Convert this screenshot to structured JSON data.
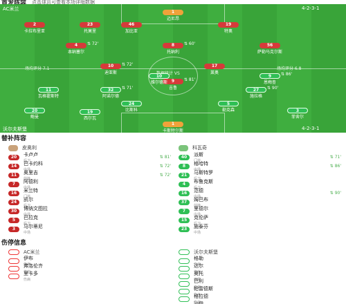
{
  "sections": {
    "lineup_title": "首发阵容",
    "lineup_sub": "点击球员可查看本场详细数据",
    "subs_title": "替补阵容",
    "injury_title": "伤停信息"
  },
  "colors": {
    "home": "#d63a3a",
    "away": "#2fbf55",
    "gk": "#f0a23a",
    "pitch": "#3fae3f"
  },
  "pitch": {
    "home_team": "AC米兰",
    "away_team": "沃尔夫斯堡",
    "home_formation": "4-2-3-1",
    "away_formation": "4-2-3-1",
    "home_meta": "场均评分 7.1",
    "away_meta": "场均评分 6.8",
    "center_text": "数据统计 VS",
    "home_players": [
      {
        "num": "1",
        "name": "迈尼昂"
      },
      {
        "num": "2",
        "name": "卡拉布里亚"
      },
      {
        "num": "23",
        "name": "托莫里"
      },
      {
        "num": "46",
        "name": "加比亚"
      },
      {
        "num": "19",
        "name": "特奥"
      },
      {
        "num": "4",
        "name": "本纳塞尔",
        "event": "72'"
      },
      {
        "num": "8",
        "name": "托纳利",
        "event": "60'"
      },
      {
        "num": "56",
        "name": "萨勒马克尔斯"
      },
      {
        "num": "10",
        "name": "迪亚斯",
        "event": "72'"
      },
      {
        "num": "17",
        "name": "莱奥"
      },
      {
        "num": "9",
        "name": "吉鲁",
        "event": "81'"
      }
    ],
    "away_players": [
      {
        "num": "1",
        "name": "卡斯特尔斯"
      },
      {
        "num": "3",
        "name": "菲舍尔"
      },
      {
        "num": "5",
        "name": "勒克森"
      },
      {
        "num": "24",
        "name": "比斯科"
      },
      {
        "num": "20",
        "name": "鲍曼"
      },
      {
        "num": "32",
        "name": "阿诺尔德",
        "event": "71'"
      },
      {
        "num": "27",
        "name": "施拉格",
        "event": "90'"
      },
      {
        "num": "11",
        "name": "瓦格霍斯特"
      },
      {
        "num": "10",
        "name": "维尔德斯"
      },
      {
        "num": "9",
        "name": "恩梅查",
        "event": "86'"
      },
      {
        "num": "19",
        "name": "西尔瓦"
      }
    ]
  },
  "subs": {
    "home_coach": "皮奥利",
    "away_coach": "科瓦奇",
    "home": [
      {
        "num": "20",
        "name": "卡卢卢",
        "pos": "后卫",
        "event": "81'"
      },
      {
        "num": "14",
        "name": "巴卡约科",
        "pos": "中场",
        "event": "72'"
      },
      {
        "num": "11",
        "name": "奥里吉",
        "pos": "前锋",
        "event": "72'"
      },
      {
        "num": "7",
        "name": "阿德利",
        "pos": "中场"
      },
      {
        "num": "16",
        "name": "米兰特",
        "pos": "门将"
      },
      {
        "num": "24",
        "name": "凯尔",
        "pos": "后卫"
      },
      {
        "num": "30",
        "name": "博纳文图拉",
        "pos": "中场"
      },
      {
        "num": "5",
        "name": "巴拉克",
        "pos": "后卫"
      },
      {
        "num": "3",
        "name": "马尔蒂尼",
        "pos": "中场"
      }
    ],
    "away": [
      {
        "num": "40",
        "name": "派斯",
        "pos": "门将",
        "event": "71'"
      },
      {
        "num": "8",
        "name": "格哈特",
        "pos": "中场",
        "event": "86'"
      },
      {
        "num": "21",
        "name": "马斯特罗",
        "pos": "后卫"
      },
      {
        "num": "4",
        "name": "布鲁克斯",
        "pos": "后卫"
      },
      {
        "num": "16",
        "name": "范德",
        "pos": "中场",
        "event": "90'"
      },
      {
        "num": "37",
        "name": "姆巴布",
        "pos": "前锋"
      },
      {
        "num": "7",
        "name": "里德尔",
        "pos": "中场"
      },
      {
        "num": "15",
        "name": "克伦萨",
        "pos": "后卫"
      },
      {
        "num": "23",
        "name": "施泰芬",
        "pos": "中场"
      }
    ]
  },
  "injuries": {
    "home": [
      {
        "name": "伊布",
        "status": "伤病"
      },
      {
        "name": "弗洛伦齐",
        "status": "伤病"
      },
      {
        "name": "里卡多",
        "status": "伤病"
      }
    ],
    "away": [
      {
        "name": "格勒",
        "status": "伤病"
      },
      {
        "name": "达尔",
        "status": "伤病"
      },
      {
        "name": "奥托",
        "status": "停赛"
      },
      {
        "name": "巴利",
        "status": "伤病"
      },
      {
        "name": "帕雷德斯",
        "status": "伤病"
      },
      {
        "name": "格拉德",
        "status": "伤病"
      },
      {
        "name": "沙伊",
        "status": "停赛"
      }
    ]
  }
}
